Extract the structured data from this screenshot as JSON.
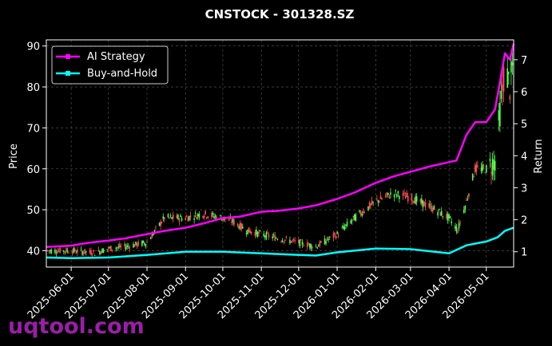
{
  "chart_data": {
    "type": "line",
    "title": "CNSTOCK - 301328.SZ",
    "xlabel": "",
    "ylabel_left": "Price",
    "ylabel_right": "Return",
    "left_axis": {
      "ticks": [
        40,
        50,
        60,
        70,
        80,
        90
      ],
      "range": [
        36,
        91.5
      ]
    },
    "right_axis": {
      "ticks": [
        1,
        2,
        3,
        4,
        5,
        6,
        7
      ],
      "range": [
        0.52,
        7.62
      ]
    },
    "x_ticks": [
      "2025-06-01",
      "2025-07-01",
      "2025-08-01",
      "2025-09-01",
      "2025-10-01",
      "2025-11-01",
      "2025-12-01",
      "2026-01-01",
      "2026-02-01",
      "2026-03-01",
      "2026-04-01",
      "2026-05-01"
    ],
    "x_range": [
      "2025-05-12",
      "2026-05-23"
    ],
    "grid": true,
    "legend_position": "upper-left",
    "series": [
      {
        "name": "AI Strategy",
        "axis": "right",
        "color": "#ff00ff",
        "x": [
          "2025-05-12",
          "2025-06-01",
          "2025-06-15",
          "2025-07-01",
          "2025-07-15",
          "2025-08-01",
          "2025-08-15",
          "2025-09-01",
          "2025-09-15",
          "2025-10-01",
          "2025-10-15",
          "2025-11-01",
          "2025-11-15",
          "2025-12-01",
          "2025-12-15",
          "2026-01-01",
          "2026-01-15",
          "2026-02-01",
          "2026-02-15",
          "2026-03-01",
          "2026-03-15",
          "2026-04-01",
          "2026-04-07",
          "2026-04-15",
          "2026-04-22",
          "2026-05-01",
          "2026-05-08",
          "2026-05-12",
          "2026-05-16",
          "2026-05-20",
          "2026-05-23"
        ],
        "values": [
          1.15,
          1.19,
          1.28,
          1.35,
          1.42,
          1.55,
          1.65,
          1.75,
          1.88,
          2.05,
          2.1,
          2.25,
          2.28,
          2.35,
          2.45,
          2.65,
          2.85,
          3.15,
          3.35,
          3.5,
          3.65,
          3.8,
          3.85,
          4.65,
          5.05,
          5.05,
          5.45,
          6.3,
          7.2,
          7.0,
          7.5
        ]
      },
      {
        "name": "Buy-and-Hold",
        "axis": "right",
        "color": "#00ffff",
        "x": [
          "2025-05-12",
          "2025-06-01",
          "2025-07-01",
          "2025-08-01",
          "2025-09-01",
          "2025-10-01",
          "2025-11-01",
          "2025-12-01",
          "2025-12-15",
          "2026-01-01",
          "2026-02-01",
          "2026-03-01",
          "2026-04-01",
          "2026-04-15",
          "2026-05-01",
          "2026-05-10",
          "2026-05-16",
          "2026-05-23"
        ],
        "values": [
          0.82,
          0.8,
          0.82,
          0.9,
          1.0,
          1.0,
          0.95,
          0.9,
          0.88,
          0.98,
          1.1,
          1.08,
          0.95,
          1.2,
          1.32,
          1.45,
          1.65,
          1.75
        ]
      }
    ],
    "candlestick_price_path": {
      "axis": "left",
      "x": [
        "2025-05-12",
        "2025-06-01",
        "2025-06-20",
        "2025-07-01",
        "2025-07-15",
        "2025-08-01",
        "2025-08-15",
        "2025-09-01",
        "2025-09-15",
        "2025-10-01",
        "2025-10-10",
        "2025-10-20",
        "2025-11-01",
        "2025-11-15",
        "2025-12-01",
        "2025-12-15",
        "2026-01-01",
        "2026-01-15",
        "2026-02-01",
        "2026-02-15",
        "2026-03-01",
        "2026-03-15",
        "2026-04-01",
        "2026-04-08",
        "2026-04-15",
        "2026-04-22",
        "2026-05-01",
        "2026-05-08",
        "2026-05-12",
        "2026-05-16",
        "2026-05-20",
        "2026-05-23"
      ],
      "values": [
        40,
        40,
        39.5,
        40.5,
        41,
        42,
        48,
        48,
        49,
        48,
        47,
        45,
        44,
        43,
        42,
        41,
        44,
        48,
        52,
        54,
        53,
        51,
        48,
        45,
        52,
        60,
        60,
        62,
        74,
        85,
        80,
        87
      ],
      "up_color": "#ff4f4f",
      "down_color": "#4fff4f"
    }
  },
  "legend": {
    "items": [
      {
        "label": "AI Strategy",
        "color": "#ff00ff"
      },
      {
        "label": "Buy-and-Hold",
        "color": "#00ffff"
      }
    ]
  },
  "watermark": {
    "text": "uqtool.com",
    "color": "#9a1ea8"
  }
}
